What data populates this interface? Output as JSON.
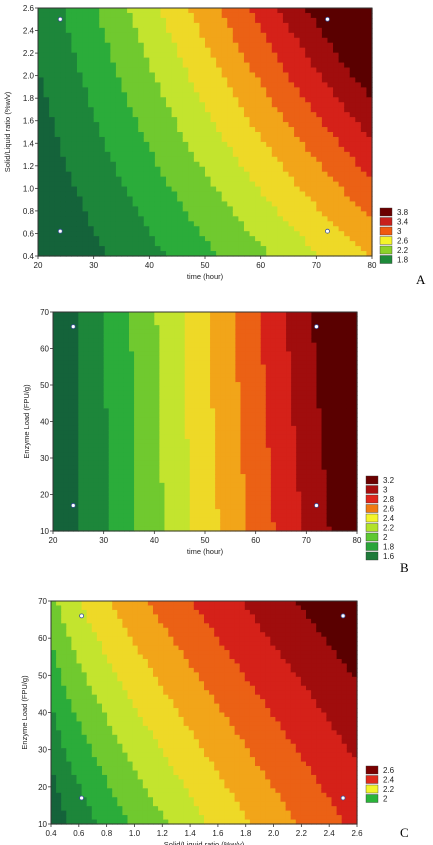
{
  "chart_data": [
    {
      "type": "heatmap",
      "panel_label": "A",
      "xlabel": "time (hour)",
      "ylabel": "Solid/Liquid ratio (%w/v)",
      "xlim": [
        20,
        80
      ],
      "ylim": [
        0.4,
        2.6
      ],
      "xticks": [
        "20",
        "30",
        "40",
        "50",
        "60",
        "70",
        "80"
      ],
      "yticks": [
        "0.4",
        "0.6",
        "0.8",
        "1.0",
        "1.2",
        "1.4",
        "1.6",
        "1.8",
        "2.0",
        "2.2",
        "2.4",
        "2.6"
      ],
      "legend_levels": [
        "3.8",
        "3.4",
        "3",
        "2.6",
        "2.2",
        "1.8"
      ],
      "legend_colors": [
        "#6b0000",
        "#c8201c",
        "#f05a10",
        "#f4f42a",
        "#8cd22a",
        "#1e8a3a"
      ],
      "legend_placement": "right",
      "design_points": [
        {
          "x": 24,
          "y": 0.62
        },
        {
          "x": 24,
          "y": 2.5
        },
        {
          "x": 72,
          "y": 2.5
        },
        {
          "x": 72,
          "y": 0.62
        }
      ],
      "surface": {
        "min": 1.6,
        "max": 4.0
      }
    },
    {
      "type": "heatmap",
      "panel_label": "B",
      "xlabel": "time (hour)",
      "ylabel": "Enzyme Load (FPU/g)",
      "xlim": [
        20,
        80
      ],
      "ylim": [
        10,
        70
      ],
      "xticks": [
        "20",
        "30",
        "40",
        "50",
        "60",
        "70",
        "80"
      ],
      "yticks": [
        "10",
        "20",
        "30",
        "40",
        "50",
        "60",
        "70"
      ],
      "legend_levels": [
        "3.2",
        "3",
        "2.8",
        "2.6",
        "2.4",
        "2.2",
        "2",
        "1.8",
        "1.6"
      ],
      "legend_colors": [
        "#6b0000",
        "#a80e0e",
        "#e0261c",
        "#f07a12",
        "#f4f42a",
        "#b2e22a",
        "#5ec832",
        "#2aa43a",
        "#1e7a3a"
      ],
      "legend_placement": "right",
      "design_points": [
        {
          "x": 24,
          "y": 66
        },
        {
          "x": 72,
          "y": 66
        },
        {
          "x": 24,
          "y": 17
        },
        {
          "x": 72,
          "y": 17
        }
      ],
      "surface": {
        "min": 1.6,
        "max": 3.35
      }
    },
    {
      "type": "heatmap",
      "panel_label": "C",
      "xlabel": "Solid/Liquid ratio (%w/v)",
      "ylabel": "Enzyme Load (FPU/g)",
      "xlim": [
        0.4,
        2.6
      ],
      "ylim": [
        10,
        70
      ],
      "xticks": [
        "0.4",
        "0.6",
        "0.8",
        "1.0",
        "1.2",
        "1.4",
        "1.6",
        "1.8",
        "2.0",
        "2.2",
        "2.4",
        "2.6"
      ],
      "yticks": [
        "10",
        "20",
        "30",
        "40",
        "50",
        "60",
        "70"
      ],
      "legend_levels": [
        "2.6",
        "2.4",
        "2.2",
        "2"
      ],
      "legend_colors": [
        "#7a0000",
        "#e02a1c",
        "#f4f42a",
        "#2ab43a"
      ],
      "legend_placement": "right",
      "design_points": [
        {
          "x": 0.62,
          "y": 66
        },
        {
          "x": 2.5,
          "y": 66
        },
        {
          "x": 0.62,
          "y": 17
        },
        {
          "x": 2.5,
          "y": 17
        }
      ],
      "surface": {
        "min": 1.8,
        "max": 2.8
      }
    }
  ]
}
